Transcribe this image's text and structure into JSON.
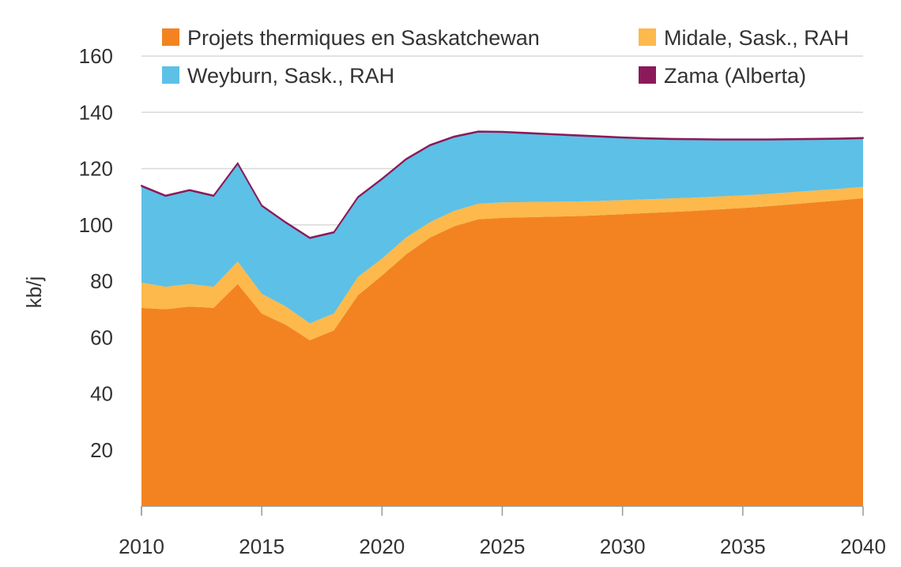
{
  "chart_data": {
    "type": "area",
    "stacked": true,
    "title": "",
    "xlabel": "",
    "ylabel": "kb/j",
    "xlim": [
      2010,
      2040
    ],
    "ylim": [
      0,
      160
    ],
    "x_ticks": [
      2010,
      2015,
      2020,
      2025,
      2030,
      2035,
      2040
    ],
    "y_ticks": [
      20,
      40,
      60,
      80,
      100,
      120,
      140,
      160
    ],
    "grid": true,
    "legend_position": "top",
    "x": [
      2010,
      2011,
      2012,
      2013,
      2014,
      2015,
      2016,
      2017,
      2018,
      2019,
      2020,
      2021,
      2022,
      2023,
      2024,
      2025,
      2026,
      2027,
      2028,
      2029,
      2030,
      2031,
      2032,
      2033,
      2034,
      2035,
      2036,
      2037,
      2038,
      2039,
      2040
    ],
    "series": [
      {
        "name": "Projets thermiques en Saskatchewan",
        "color": "#F38321",
        "values": [
          70.5,
          70,
          71,
          70.5,
          79,
          68.5,
          64.5,
          59,
          62.5,
          75,
          82,
          89.5,
          95.5,
          99.5,
          102,
          102.5,
          102.7,
          102.9,
          103.1,
          103.4,
          103.8,
          104.2,
          104.6,
          105,
          105.5,
          106,
          106.6,
          107.3,
          108,
          108.7,
          109.5
        ]
      },
      {
        "name": "Midale, Sask., RAH",
        "color": "#FDB94B",
        "values": [
          9,
          8,
          8,
          7.5,
          8,
          7,
          6.5,
          6,
          6,
          6.5,
          6,
          6,
          5.5,
          5.5,
          5.5,
          5.5,
          5.4,
          5.3,
          5.2,
          5.1,
          5,
          4.9,
          4.8,
          4.7,
          4.6,
          4.5,
          4.4,
          4.3,
          4.2,
          4.1,
          4
        ]
      },
      {
        "name": "Weyburn, Sask., RAH",
        "color": "#5DC0E6",
        "values": [
          34.2,
          32.2,
          33.2,
          32.2,
          34.7,
          31.2,
          29.7,
          30.2,
          28.7,
          28.2,
          28.2,
          27.7,
          27.2,
          26.2,
          25.5,
          24.9,
          24.4,
          23.9,
          23.4,
          22.8,
          22.1,
          21.5,
          21.0,
          20.6,
          20.1,
          19.7,
          19.2,
          18.7,
          18.2,
          17.7,
          17.2
        ]
      },
      {
        "name": "Zama (Alberta)",
        "color": "#8B1A5A",
        "values": [
          0.3,
          0.3,
          0.3,
          0.3,
          0.3,
          0.3,
          0.3,
          0.3,
          0.3,
          0.3,
          0.3,
          0.3,
          0.3,
          0.3,
          0.3,
          0.3,
          0.3,
          0.3,
          0.3,
          0.3,
          0.3,
          0.3,
          0.3,
          0.3,
          0.3,
          0.3,
          0.3,
          0.3,
          0.3,
          0.3,
          0.3
        ]
      }
    ]
  }
}
